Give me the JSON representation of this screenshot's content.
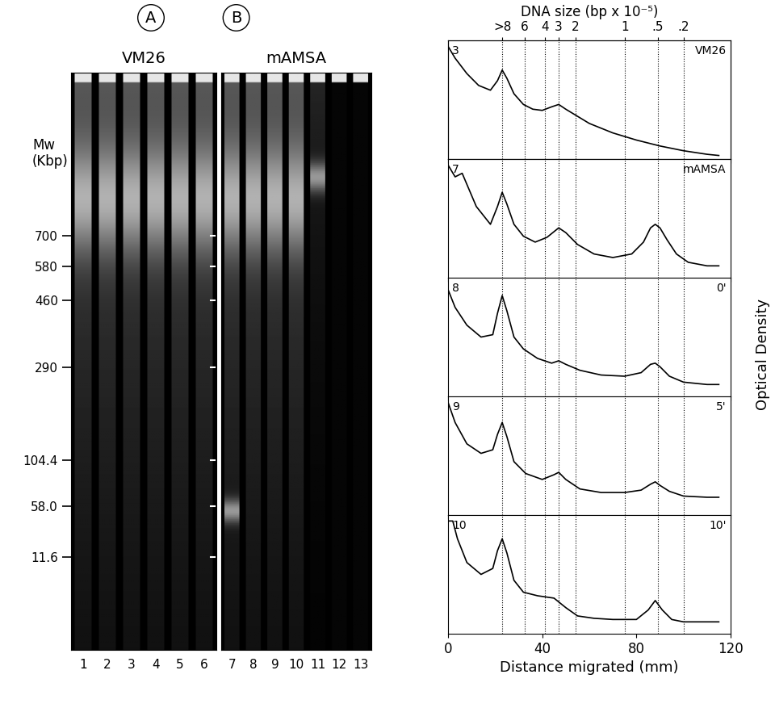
{
  "gels": [
    {
      "label": "A",
      "title": "VM26",
      "lanes": [
        "1",
        "2",
        "3",
        "4",
        "5",
        "6"
      ]
    },
    {
      "label": "B",
      "title": "mAMSA",
      "lanes": [
        "7",
        "8",
        "9",
        "10",
        "11",
        "12",
        "13"
      ]
    }
  ],
  "gel_axis": {
    "title": "Mw\n(Kbp)",
    "ylim": [
      100,
      0
    ],
    "yticks": [
      {
        "value": 28.3,
        "label": "700"
      },
      {
        "value": 33.6,
        "label": "580"
      },
      {
        "value": 39.4,
        "label": "460"
      },
      {
        "value": 51.0,
        "label": "290"
      },
      {
        "value": 67.1,
        "label": "104.4"
      },
      {
        "value": 75.1,
        "label": "58.0"
      },
      {
        "value": 83.9,
        "label": "11.6"
      }
    ]
  },
  "top_axis": {
    "title": "DNA size (bp x 10⁻⁵)",
    "ticks": [
      {
        "value": 23,
        "label": ">8"
      },
      {
        "value": 32.5,
        "label": "6"
      },
      {
        "value": 41,
        "label": "4"
      },
      {
        "value": 47,
        "label": "3"
      },
      {
        "value": 54,
        "label": "2"
      },
      {
        "value": 75,
        "label": "1"
      },
      {
        "value": 89,
        "label": ".5"
      },
      {
        "value": 100,
        "label": ".2"
      }
    ]
  },
  "x_axis": {
    "title": "Distance migrated (mm)",
    "xlim": [
      0,
      120
    ],
    "xticks": [
      0,
      40,
      80,
      120
    ]
  },
  "y_title": "Optical Density",
  "chart_data": [
    {
      "type": "line",
      "number": "3",
      "label": "VM26",
      "ylim": [
        0,
        1
      ],
      "color": "#000000",
      "x": [
        0,
        3,
        8,
        13,
        18,
        21,
        23,
        25,
        28,
        32,
        36,
        40,
        44,
        47,
        50,
        55,
        60,
        70,
        80,
        90,
        100,
        110,
        115
      ],
      "values": [
        0.95,
        0.85,
        0.72,
        0.62,
        0.58,
        0.66,
        0.75,
        0.68,
        0.55,
        0.46,
        0.42,
        0.41,
        0.44,
        0.46,
        0.42,
        0.36,
        0.3,
        0.22,
        0.16,
        0.11,
        0.07,
        0.04,
        0.03
      ]
    },
    {
      "type": "line",
      "number": "7",
      "label": "mAMSA",
      "ylim": [
        0,
        1
      ],
      "color": "#000000",
      "x": [
        0,
        3,
        6,
        12,
        18,
        21,
        23,
        25,
        28,
        32,
        37,
        42,
        47,
        50,
        55,
        62,
        70,
        78,
        83,
        86,
        88,
        90,
        93,
        97,
        102,
        110,
        115
      ],
      "values": [
        0.95,
        0.85,
        0.88,
        0.6,
        0.45,
        0.6,
        0.72,
        0.62,
        0.45,
        0.35,
        0.3,
        0.34,
        0.42,
        0.38,
        0.28,
        0.2,
        0.17,
        0.2,
        0.3,
        0.42,
        0.45,
        0.42,
        0.32,
        0.2,
        0.13,
        0.1,
        0.1
      ]
    },
    {
      "type": "line",
      "number": "8",
      "label": "0'",
      "ylim": [
        0,
        1
      ],
      "color": "#000000",
      "x": [
        0,
        3,
        8,
        14,
        19,
        21,
        23,
        25,
        28,
        32,
        38,
        44,
        47,
        50,
        56,
        65,
        75,
        82,
        86,
        88,
        90,
        94,
        100,
        110,
        115
      ],
      "values": [
        0.9,
        0.75,
        0.6,
        0.5,
        0.52,
        0.7,
        0.85,
        0.72,
        0.5,
        0.4,
        0.32,
        0.28,
        0.3,
        0.27,
        0.22,
        0.18,
        0.17,
        0.2,
        0.27,
        0.28,
        0.25,
        0.17,
        0.12,
        0.1,
        0.1
      ]
    },
    {
      "type": "line",
      "number": "9",
      "label": "5'",
      "ylim": [
        0,
        1
      ],
      "color": "#000000",
      "x": [
        0,
        3,
        8,
        14,
        19,
        21,
        23,
        25,
        28,
        33,
        40,
        45,
        47,
        50,
        56,
        65,
        75,
        82,
        86,
        88,
        90,
        94,
        100,
        110,
        115
      ],
      "values": [
        0.95,
        0.78,
        0.6,
        0.52,
        0.55,
        0.68,
        0.78,
        0.66,
        0.45,
        0.35,
        0.3,
        0.34,
        0.36,
        0.3,
        0.22,
        0.19,
        0.19,
        0.21,
        0.26,
        0.28,
        0.25,
        0.2,
        0.16,
        0.15,
        0.15
      ]
    },
    {
      "type": "line",
      "number": "10",
      "label": "10'",
      "ylim": [
        0,
        1
      ],
      "color": "#000000",
      "x": [
        0,
        2,
        4,
        8,
        14,
        19,
        21,
        23,
        25,
        28,
        32,
        38,
        45,
        50,
        55,
        62,
        70,
        80,
        85,
        88,
        91,
        95,
        100,
        110,
        115
      ],
      "values": [
        0.95,
        0.95,
        0.8,
        0.6,
        0.5,
        0.55,
        0.7,
        0.8,
        0.68,
        0.45,
        0.35,
        0.32,
        0.3,
        0.22,
        0.15,
        0.13,
        0.12,
        0.12,
        0.2,
        0.28,
        0.2,
        0.12,
        0.1,
        0.1,
        0.1
      ]
    }
  ]
}
